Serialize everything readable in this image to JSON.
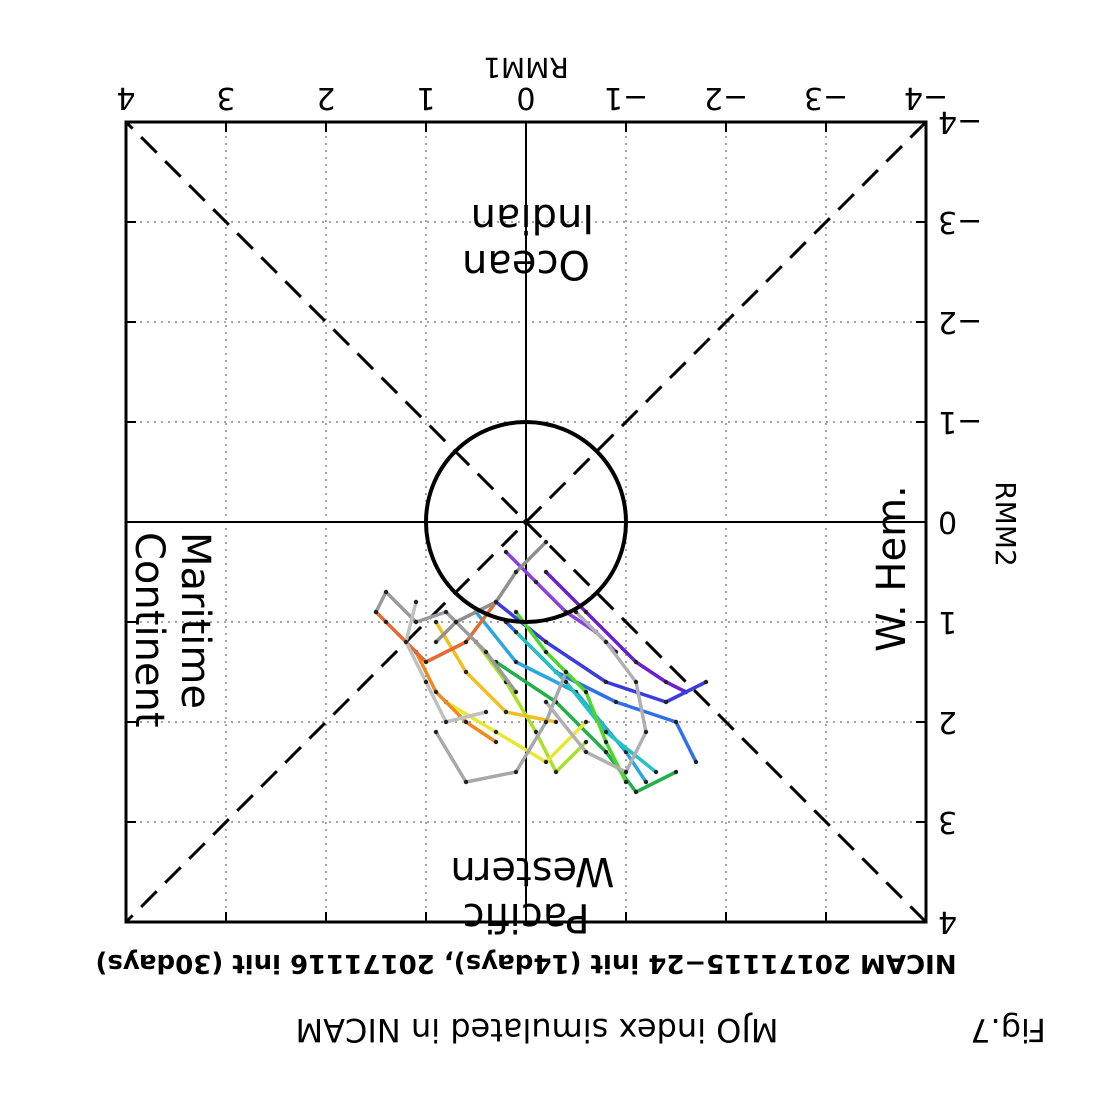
{
  "caption": {
    "fig_label": "Fig.7",
    "text": "MJO index simulated in NICAM"
  },
  "chart_data": {
    "type": "line",
    "title": "NICAM 20171115−24 init (14days), 20171116 init (30days)",
    "xlabel": "RMM1",
    "ylabel": "RMM2",
    "xlim": [
      -4,
      4
    ],
    "ylim": [
      -4,
      4
    ],
    "x_ticks": [
      "−4",
      "−3",
      "−2",
      "−1",
      "0",
      "1",
      "2",
      "3",
      "4"
    ],
    "y_ticks": [
      "−4",
      "−3",
      "−2",
      "−1",
      "0",
      "1",
      "2",
      "3",
      "4"
    ],
    "grid": true,
    "orientation_note": "figure is displayed rotated 180 degrees",
    "unit_circle_radius": 1,
    "regions": {
      "indian_ocean": [
        "Indian",
        "Ocean"
      ],
      "maritime_continent": [
        "Maritime",
        "Continent"
      ],
      "western_pacific": [
        "Western",
        "Pacific"
      ],
      "w_hem": [
        "W. Hem."
      ]
    },
    "series": [
      {
        "color": "#6a1fd0",
        "points": [
          [
            -0.2,
            0.5
          ],
          [
            -0.6,
            0.9
          ],
          [
            -1.1,
            1.4
          ],
          [
            -1.4,
            1.6
          ],
          [
            -1.6,
            1.7
          ]
        ]
      },
      {
        "color": "#8a3fe0",
        "points": [
          [
            0.2,
            0.3
          ],
          [
            -0.1,
            0.6
          ],
          [
            -0.4,
            0.9
          ],
          [
            -0.7,
            1.1
          ],
          [
            -0.9,
            1.3
          ]
        ]
      },
      {
        "color": "#3b3be0",
        "points": [
          [
            0.3,
            0.8
          ],
          [
            -0.2,
            1.2
          ],
          [
            -0.8,
            1.6
          ],
          [
            -1.4,
            1.8
          ],
          [
            -1.8,
            1.6
          ]
        ]
      },
      {
        "color": "#2f6fe8",
        "points": [
          [
            0.2,
            1.0
          ],
          [
            -0.3,
            1.5
          ],
          [
            -0.9,
            1.8
          ],
          [
            -1.5,
            2.0
          ],
          [
            -1.7,
            2.4
          ]
        ]
      },
      {
        "color": "#2aa6e0",
        "points": [
          [
            0.5,
            0.9
          ],
          [
            0.1,
            1.4
          ],
          [
            -0.5,
            1.7
          ],
          [
            -1.0,
            2.3
          ],
          [
            -1.2,
            2.6
          ]
        ]
      },
      {
        "color": "#21c4c0",
        "points": [
          [
            0.1,
            1.1
          ],
          [
            -0.4,
            1.6
          ],
          [
            -0.8,
            2.1
          ],
          [
            -1.3,
            2.5
          ]
        ]
      },
      {
        "color": "#22b04a",
        "points": [
          [
            0.3,
            1.4
          ],
          [
            -0.3,
            1.8
          ],
          [
            -0.8,
            2.3
          ],
          [
            -1.1,
            2.7
          ],
          [
            -1.5,
            2.5
          ]
        ]
      },
      {
        "color": "#4fd62a",
        "points": [
          [
            0.1,
            0.9
          ],
          [
            -0.2,
            1.3
          ],
          [
            -0.6,
            1.7
          ],
          [
            -0.8,
            2.2
          ],
          [
            -1.0,
            2.6
          ]
        ]
      },
      {
        "color": "#a8e02a",
        "points": [
          [
            0.5,
            1.2
          ],
          [
            0.2,
            1.6
          ],
          [
            -0.1,
            2.1
          ],
          [
            -0.3,
            2.5
          ],
          [
            -0.6,
            2.2
          ]
        ]
      },
      {
        "color": "#e8e832",
        "points": [
          [
            0.8,
            1.8
          ],
          [
            0.3,
            2.1
          ],
          [
            -0.2,
            2.4
          ],
          [
            -0.6,
            2.0
          ]
        ]
      },
      {
        "color": "#f0c020",
        "points": [
          [
            0.9,
            1.0
          ],
          [
            0.6,
            1.5
          ],
          [
            0.2,
            1.9
          ],
          [
            -0.3,
            2.0
          ]
        ]
      },
      {
        "color": "#f08a20",
        "points": [
          [
            1.1,
            1.3
          ],
          [
            0.9,
            1.7
          ],
          [
            0.6,
            2.0
          ],
          [
            0.3,
            2.2
          ]
        ]
      },
      {
        "color": "#e46a30",
        "points": [
          [
            0.3,
            0.8
          ],
          [
            0.6,
            1.2
          ],
          [
            1.0,
            1.4
          ],
          [
            1.4,
            1.0
          ],
          [
            1.5,
            0.9
          ]
        ]
      },
      {
        "color": "#9a9a9a",
        "points": [
          [
            0.1,
            1.7
          ],
          [
            0.4,
            1.3
          ],
          [
            0.8,
            0.9
          ],
          [
            1.1,
            1.0
          ],
          [
            1.4,
            0.7
          ],
          [
            1.5,
            0.9
          ]
        ]
      },
      {
        "color": "#a8a8a8",
        "points": [
          [
            -0.4,
            1.5
          ],
          [
            -0.2,
            2.0
          ],
          [
            0.1,
            2.5
          ],
          [
            0.6,
            2.6
          ],
          [
            0.9,
            2.1
          ]
        ]
      },
      {
        "color": "#b0b0b0",
        "points": [
          [
            -0.5,
            0.9
          ],
          [
            -0.8,
            1.2
          ],
          [
            -1.1,
            1.6
          ],
          [
            -1.2,
            2.1
          ],
          [
            -1.0,
            2.5
          ],
          [
            -0.6,
            2.3
          ],
          [
            -0.2,
            1.8
          ]
        ]
      },
      {
        "color": "#8f8f8f",
        "points": [
          [
            -0.2,
            0.2
          ],
          [
            0.1,
            0.5
          ],
          [
            0.3,
            0.8
          ],
          [
            0.7,
            1.0
          ],
          [
            0.9,
            1.2
          ]
        ]
      },
      {
        "color": "#c0c0c0",
        "points": [
          [
            0.4,
            1.9
          ],
          [
            0.8,
            2.0
          ],
          [
            1.0,
            1.6
          ],
          [
            1.2,
            1.2
          ],
          [
            1.1,
            0.8
          ]
        ]
      }
    ]
  }
}
